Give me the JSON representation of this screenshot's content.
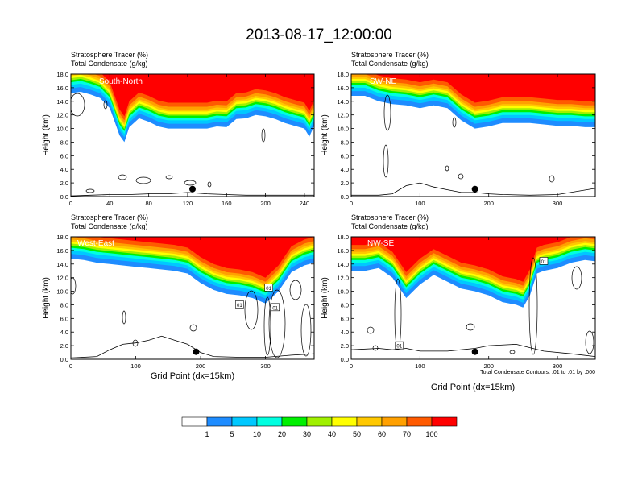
{
  "figure": {
    "title": "2013-08-17_12:00:00",
    "x_axis_label": "Grid Point (dx=15km)",
    "contour_note": "Total Condensate Contours: .01 to .01 by .000"
  },
  "colors": {
    "levels": [
      "#ffffff",
      "#1e8cff",
      "#00c8ff",
      "#00ffe0",
      "#00f000",
      "#a0f000",
      "#ffff00",
      "#ffc800",
      "#ffa000",
      "#ff5a00",
      "#ff0000"
    ]
  },
  "colorbar": {
    "labels": [
      "1",
      "5",
      "10",
      "20",
      "30",
      "40",
      "50",
      "60",
      "70",
      "100"
    ]
  },
  "chart_data": [
    {
      "type": "heatmap",
      "id": "south-north",
      "label": "South-North",
      "subtitle_line1": "Stratosphere Tracer   (%)",
      "subtitle_line2": "Total Condensate   (g/kg)",
      "ylabel": "Height (km)",
      "xlim": [
        0,
        250
      ],
      "ylim": [
        0,
        18
      ],
      "x_ticks": [
        "0",
        "40",
        "80",
        "120",
        "160",
        "200",
        "240"
      ],
      "x_tick_values": [
        0,
        40,
        80,
        120,
        160,
        200,
        240
      ],
      "y_ticks": [
        "0.0",
        "2.0",
        "4.0",
        "6.0",
        "8.0",
        "10.0",
        "12.0",
        "14.0",
        "16.0",
        "18.0"
      ],
      "tracer_base_x": [
        0,
        10,
        20,
        30,
        40,
        45,
        50,
        55,
        60,
        70,
        80,
        90,
        100,
        110,
        120,
        130,
        140,
        150,
        160,
        170,
        180,
        190,
        200,
        210,
        220,
        230,
        240,
        245,
        250
      ],
      "tracer_base_km": [
        15.2,
        15.4,
        15.0,
        14.5,
        13.0,
        11.0,
        9.0,
        8.0,
        10.2,
        11.5,
        11.0,
        10.3,
        10.0,
        10.0,
        10.0,
        10.0,
        10.0,
        10.3,
        10.2,
        11.4,
        11.5,
        12.0,
        11.8,
        11.4,
        10.8,
        10.4,
        10.0,
        8.8,
        10.4
      ],
      "terrain_x": [
        0,
        20,
        40,
        60,
        80,
        100,
        120,
        140,
        160,
        180,
        200,
        220,
        240,
        250
      ],
      "terrain_km": [
        0.1,
        0.2,
        0.3,
        0.3,
        0.4,
        0.4,
        0.6,
        0.4,
        0.3,
        0.2,
        0.2,
        0.2,
        0.2,
        0.2
      ],
      "marker_x": 125,
      "marker_km": 1.1
    },
    {
      "type": "heatmap",
      "id": "sw-ne",
      "label": "SW-NE",
      "subtitle_line1": "Stratosphere Tracer   (%)",
      "subtitle_line2": "Total Condensate   (g/kg)",
      "ylabel": "Height (km)",
      "xlim": [
        0,
        355
      ],
      "ylim": [
        0,
        18
      ],
      "x_ticks": [
        "0",
        "100",
        "200",
        "300"
      ],
      "x_tick_values": [
        0,
        100,
        200,
        300
      ],
      "y_ticks": [
        "0.0",
        "2.0",
        "4.0",
        "6.0",
        "8.0",
        "10.0",
        "12.0",
        "14.0",
        "16.0",
        "18.0"
      ],
      "tracer_base_x": [
        0,
        20,
        40,
        60,
        80,
        100,
        120,
        140,
        160,
        180,
        200,
        220,
        240,
        260,
        280,
        300,
        320,
        340,
        355
      ],
      "tracer_base_km": [
        14.8,
        14.8,
        14.0,
        13.6,
        13.4,
        13.0,
        13.4,
        13.0,
        11.2,
        10.0,
        10.3,
        10.8,
        10.8,
        10.8,
        10.6,
        10.4,
        10.4,
        10.2,
        10.2
      ],
      "terrain_x": [
        0,
        40,
        60,
        80,
        100,
        120,
        140,
        160,
        180,
        200,
        220,
        260,
        300,
        355
      ],
      "terrain_km": [
        0.2,
        0.2,
        0.4,
        1.6,
        2.0,
        1.4,
        1.0,
        0.6,
        0.6,
        0.4,
        0.3,
        0.2,
        0.3,
        1.2
      ],
      "marker_x": 180,
      "marker_km": 1.1
    },
    {
      "type": "heatmap",
      "id": "west-east",
      "label": "West-East",
      "subtitle_line1": "Stratosphere Tracer   (%)",
      "subtitle_line2": "Total Condensate   (g/kg)",
      "ylabel": "Height (km)",
      "xlim": [
        0,
        375
      ],
      "ylim": [
        0,
        18
      ],
      "x_ticks": [
        "0",
        "100",
        "200",
        "300"
      ],
      "x_tick_values": [
        0,
        100,
        200,
        300
      ],
      "y_ticks": [
        "0.0",
        "2.0",
        "4.0",
        "6.0",
        "8.0",
        "10.0",
        "12.0",
        "14.0",
        "16.0",
        "18.0"
      ],
      "tracer_base_x": [
        0,
        20,
        40,
        60,
        80,
        100,
        120,
        140,
        160,
        180,
        200,
        220,
        240,
        260,
        280,
        300,
        320,
        340,
        360,
        375
      ],
      "tracer_base_km": [
        14.8,
        14.6,
        14.2,
        14.0,
        13.8,
        13.6,
        13.4,
        13.2,
        13.0,
        12.6,
        11.2,
        10.2,
        9.6,
        9.4,
        9.0,
        8.2,
        10.0,
        12.8,
        13.8,
        14.2
      ],
      "terrain_x": [
        0,
        40,
        60,
        80,
        100,
        120,
        140,
        160,
        180,
        200,
        220,
        260,
        300,
        340,
        375
      ],
      "terrain_km": [
        0.2,
        0.4,
        1.4,
        2.2,
        2.4,
        2.8,
        3.4,
        2.8,
        2.2,
        1.0,
        0.4,
        0.3,
        0.3,
        0.6,
        0.8
      ],
      "marker_x": 193,
      "marker_km": 1.1,
      "contour_labels": [
        {
          "x": 260,
          "km": 8.0,
          "text": "01"
        },
        {
          "x": 305,
          "km": 10.5,
          "text": "01"
        },
        {
          "x": 315,
          "km": 7.6,
          "text": "01"
        }
      ]
    },
    {
      "type": "heatmap",
      "id": "nw-se",
      "label": "NW-SE",
      "subtitle_line1": "Stratosphere Tracer   (%)",
      "subtitle_line2": "Total Condensate   (g/kg)",
      "ylabel": "Height (km)",
      "xlim": [
        0,
        355
      ],
      "ylim": [
        0,
        18
      ],
      "x_ticks": [
        "0",
        "100",
        "200",
        "300"
      ],
      "x_tick_values": [
        0,
        100,
        200,
        300
      ],
      "y_ticks": [
        "0.0",
        "2.0",
        "4.0",
        "6.0",
        "8.0",
        "10.0",
        "12.0",
        "14.0",
        "16.0",
        "18.0"
      ],
      "tracer_base_x": [
        0,
        20,
        40,
        60,
        80,
        100,
        120,
        140,
        160,
        180,
        200,
        220,
        240,
        250,
        260,
        270,
        280,
        300,
        320,
        340,
        355
      ],
      "tracer_base_km": [
        13.0,
        13.0,
        13.4,
        12.0,
        9.0,
        11.0,
        12.4,
        11.4,
        10.4,
        10.0,
        9.4,
        8.4,
        8.0,
        7.6,
        9.4,
        12.6,
        13.0,
        13.4,
        14.2,
        14.6,
        14.4
      ],
      "terrain_x": [
        0,
        40,
        60,
        80,
        100,
        140,
        160,
        180,
        200,
        240,
        280,
        320,
        355
      ],
      "terrain_km": [
        1.4,
        1.6,
        1.4,
        1.6,
        1.2,
        1.2,
        1.4,
        1.6,
        2.0,
        2.2,
        1.2,
        0.8,
        0.4
      ],
      "marker_x": 180,
      "marker_km": 1.1,
      "contour_labels": [
        {
          "x": 280,
          "km": 14.4,
          "text": "01"
        },
        {
          "x": 70,
          "km": 2.0,
          "text": "01"
        }
      ]
    }
  ]
}
